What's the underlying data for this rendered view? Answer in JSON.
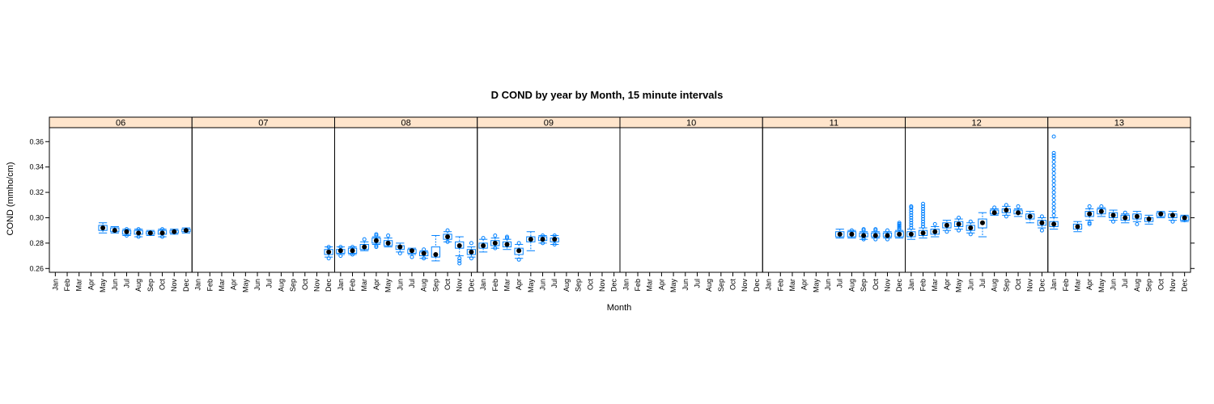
{
  "chart_data": {
    "type": "box",
    "title": "D COND by year by Month, 15 minute intervals",
    "xlabel": "Month",
    "ylabel": "COND (mmho/cm)",
    "ylim": [
      0.257,
      0.371
    ],
    "yticks": [
      "0.26",
      "0.28",
      "0.30",
      "0.32",
      "0.34",
      "0.36"
    ],
    "months": [
      "Jan",
      "Feb",
      "Mar",
      "Apr",
      "May",
      "Jun",
      "Jul",
      "Aug",
      "Sep",
      "Oct",
      "Nov",
      "Dec"
    ],
    "colors": {
      "strip": "#ffe5cc",
      "box": "#0080ff",
      "median": "#000000"
    },
    "panels": [
      {
        "name": "06",
        "boxes": [
          {
            "m": "May",
            "q1": 0.29,
            "med": 0.292,
            "q3": 0.294,
            "lo": 0.288,
            "hi": 0.296,
            "out": []
          },
          {
            "m": "Jun",
            "q1": 0.289,
            "med": 0.29,
            "q3": 0.292,
            "lo": 0.288,
            "hi": 0.293,
            "out": []
          },
          {
            "m": "Jul",
            "q1": 0.287,
            "med": 0.289,
            "q3": 0.29,
            "lo": 0.286,
            "hi": 0.291,
            "out": [
              0.286,
              0.291
            ]
          },
          {
            "m": "Aug",
            "q1": 0.287,
            "med": 0.288,
            "q3": 0.29,
            "lo": 0.285,
            "hi": 0.291,
            "out": [
              0.285,
              0.291
            ]
          },
          {
            "m": "Sep",
            "q1": 0.287,
            "med": 0.288,
            "q3": 0.289,
            "lo": 0.286,
            "hi": 0.29,
            "out": []
          },
          {
            "m": "Oct",
            "q1": 0.287,
            "med": 0.288,
            "q3": 0.29,
            "lo": 0.285,
            "hi": 0.291,
            "out": [
              0.285,
              0.291
            ]
          },
          {
            "m": "Nov",
            "q1": 0.288,
            "med": 0.289,
            "q3": 0.29,
            "lo": 0.287,
            "hi": 0.291,
            "out": []
          },
          {
            "m": "Dec",
            "q1": 0.289,
            "med": 0.29,
            "q3": 0.291,
            "lo": 0.288,
            "hi": 0.292,
            "out": []
          }
        ]
      },
      {
        "name": "07",
        "boxes": [
          {
            "m": "Dec",
            "q1": 0.271,
            "med": 0.273,
            "q3": 0.275,
            "lo": 0.269,
            "hi": 0.277,
            "out": [
              0.268,
              0.277
            ]
          }
        ]
      },
      {
        "name": "08",
        "boxes": [
          {
            "m": "Jan",
            "q1": 0.272,
            "med": 0.274,
            "q3": 0.275,
            "lo": 0.271,
            "hi": 0.277,
            "out": [
              0.27,
              0.277
            ]
          },
          {
            "m": "Feb",
            "q1": 0.272,
            "med": 0.274,
            "q3": 0.276,
            "lo": 0.271,
            "hi": 0.277,
            "out": [
              0.271,
              0.277
            ]
          },
          {
            "m": "Mar",
            "q1": 0.275,
            "med": 0.277,
            "q3": 0.279,
            "lo": 0.274,
            "hi": 0.281,
            "out": [
              0.283
            ]
          },
          {
            "m": "Apr",
            "q1": 0.28,
            "med": 0.282,
            "q3": 0.284,
            "lo": 0.279,
            "hi": 0.285,
            "out": [
              0.277,
              0.278,
              0.286,
              0.287
            ]
          },
          {
            "m": "May",
            "q1": 0.278,
            "med": 0.28,
            "q3": 0.282,
            "lo": 0.277,
            "hi": 0.284,
            "out": [
              0.286
            ]
          },
          {
            "m": "Jun",
            "q1": 0.275,
            "med": 0.277,
            "q3": 0.278,
            "lo": 0.273,
            "hi": 0.28,
            "out": [
              0.272
            ]
          },
          {
            "m": "Jul",
            "q1": 0.272,
            "med": 0.274,
            "q3": 0.275,
            "lo": 0.271,
            "hi": 0.276,
            "out": [
              0.269
            ]
          },
          {
            "m": "Aug",
            "q1": 0.27,
            "med": 0.272,
            "q3": 0.273,
            "lo": 0.268,
            "hi": 0.274,
            "out": [
              0.268,
              0.275
            ]
          },
          {
            "m": "Sep",
            "q1": 0.269,
            "med": 0.271,
            "q3": 0.277,
            "lo": 0.266,
            "hi": 0.286,
            "out": []
          },
          {
            "m": "Oct",
            "q1": 0.283,
            "med": 0.285,
            "q3": 0.287,
            "lo": 0.281,
            "hi": 0.289,
            "out": [
              0.281,
              0.29
            ]
          },
          {
            "m": "Nov",
            "q1": 0.276,
            "med": 0.278,
            "q3": 0.281,
            "lo": 0.27,
            "hi": 0.285,
            "out": [
              0.264,
              0.266,
              0.268
            ]
          },
          {
            "m": "Dec",
            "q1": 0.271,
            "med": 0.273,
            "q3": 0.275,
            "lo": 0.269,
            "hi": 0.277,
            "out": [
              0.268,
              0.28
            ]
          }
        ]
      },
      {
        "name": "09",
        "boxes": [
          {
            "m": "Jan",
            "q1": 0.276,
            "med": 0.278,
            "q3": 0.28,
            "lo": 0.273,
            "hi": 0.283,
            "out": [
              0.284
            ]
          },
          {
            "m": "Feb",
            "q1": 0.278,
            "med": 0.28,
            "q3": 0.282,
            "lo": 0.276,
            "hi": 0.284,
            "out": [
              0.276,
              0.286
            ]
          },
          {
            "m": "Mar",
            "q1": 0.277,
            "med": 0.279,
            "q3": 0.281,
            "lo": 0.275,
            "hi": 0.283,
            "out": [
              0.284,
              0.285
            ]
          },
          {
            "m": "Apr",
            "q1": 0.271,
            "med": 0.274,
            "q3": 0.276,
            "lo": 0.268,
            "hi": 0.279,
            "out": [
              0.267,
              0.28
            ]
          },
          {
            "m": "May",
            "q1": 0.281,
            "med": 0.283,
            "q3": 0.285,
            "lo": 0.274,
            "hi": 0.289,
            "out": []
          },
          {
            "m": "Jun",
            "q1": 0.282,
            "med": 0.283,
            "q3": 0.285,
            "lo": 0.28,
            "hi": 0.286,
            "out": [
              0.28,
              0.286
            ]
          },
          {
            "m": "Jul",
            "q1": 0.281,
            "med": 0.283,
            "q3": 0.284,
            "lo": 0.279,
            "hi": 0.286,
            "out": [
              0.279,
              0.286
            ]
          }
        ]
      },
      {
        "name": "10",
        "boxes": []
      },
      {
        "name": "11",
        "boxes": [
          {
            "m": "Jul",
            "q1": 0.285,
            "med": 0.287,
            "q3": 0.289,
            "lo": 0.284,
            "hi": 0.291,
            "out": []
          },
          {
            "m": "Aug",
            "q1": 0.285,
            "med": 0.287,
            "q3": 0.289,
            "lo": 0.284,
            "hi": 0.29,
            "out": [
              0.29
            ]
          },
          {
            "m": "Sep",
            "q1": 0.285,
            "med": 0.286,
            "q3": 0.288,
            "lo": 0.283,
            "hi": 0.289,
            "out": [
              0.283,
              0.284,
              0.29,
              0.291
            ]
          },
          {
            "m": "Oct",
            "q1": 0.285,
            "med": 0.286,
            "q3": 0.288,
            "lo": 0.284,
            "hi": 0.289,
            "out": [
              0.283,
              0.29,
              0.291
            ]
          },
          {
            "m": "Nov",
            "q1": 0.285,
            "med": 0.286,
            "q3": 0.288,
            "lo": 0.284,
            "hi": 0.289,
            "out": [
              0.283,
              0.29
            ]
          },
          {
            "m": "Dec",
            "q1": 0.285,
            "med": 0.287,
            "q3": 0.289,
            "lo": 0.284,
            "hi": 0.29,
            "out": [
              0.291,
              0.292,
              0.293,
              0.294,
              0.295,
              0.296
            ]
          }
        ]
      },
      {
        "name": "12",
        "boxes": [
          {
            "m": "Jan",
            "q1": 0.285,
            "med": 0.287,
            "q3": 0.289,
            "lo": 0.283,
            "hi": 0.291,
            "out": [
              0.292,
              0.294,
              0.296,
              0.298,
              0.3,
              0.302,
              0.304,
              0.306,
              0.308,
              0.309
            ]
          },
          {
            "m": "Feb",
            "q1": 0.286,
            "med": 0.288,
            "q3": 0.29,
            "lo": 0.284,
            "hi": 0.292,
            "out": [
              0.293,
              0.295,
              0.297,
              0.299,
              0.301,
              0.303,
              0.305,
              0.307,
              0.309,
              0.311
            ]
          },
          {
            "m": "Mar",
            "q1": 0.287,
            "med": 0.289,
            "q3": 0.291,
            "lo": 0.285,
            "hi": 0.293,
            "out": [
              0.295
            ]
          },
          {
            "m": "Apr",
            "q1": 0.292,
            "med": 0.294,
            "q3": 0.296,
            "lo": 0.29,
            "hi": 0.298,
            "out": [
              0.289
            ]
          },
          {
            "m": "May",
            "q1": 0.293,
            "med": 0.295,
            "q3": 0.297,
            "lo": 0.291,
            "hi": 0.299,
            "out": [
              0.29,
              0.3
            ]
          },
          {
            "m": "Jun",
            "q1": 0.29,
            "med": 0.292,
            "q3": 0.294,
            "lo": 0.288,
            "hi": 0.296,
            "out": [
              0.287,
              0.297
            ]
          },
          {
            "m": "Jul",
            "q1": 0.292,
            "med": 0.296,
            "q3": 0.299,
            "lo": 0.285,
            "hi": 0.304,
            "out": []
          },
          {
            "m": "Aug",
            "q1": 0.303,
            "med": 0.304,
            "q3": 0.306,
            "lo": 0.302,
            "hi": 0.307,
            "out": [
              0.308
            ]
          },
          {
            "m": "Sep",
            "q1": 0.304,
            "med": 0.306,
            "q3": 0.307,
            "lo": 0.302,
            "hi": 0.309,
            "out": [
              0.301,
              0.31
            ]
          },
          {
            "m": "Oct",
            "q1": 0.303,
            "med": 0.304,
            "q3": 0.306,
            "lo": 0.301,
            "hi": 0.307,
            "out": [
              0.309
            ]
          },
          {
            "m": "Nov",
            "q1": 0.299,
            "med": 0.301,
            "q3": 0.303,
            "lo": 0.296,
            "hi": 0.305,
            "out": []
          },
          {
            "m": "Dec",
            "q1": 0.294,
            "med": 0.296,
            "q3": 0.298,
            "lo": 0.292,
            "hi": 0.3,
            "out": [
              0.29,
              0.301
            ]
          }
        ]
      },
      {
        "name": "13",
        "boxes": [
          {
            "m": "Jan",
            "q1": 0.293,
            "med": 0.295,
            "q3": 0.297,
            "lo": 0.291,
            "hi": 0.3,
            "out": [
              0.302,
              0.305,
              0.308,
              0.311,
              0.314,
              0.317,
              0.32,
              0.323,
              0.326,
              0.329,
              0.332,
              0.335,
              0.338,
              0.341,
              0.344,
              0.347,
              0.349,
              0.351,
              0.364
            ]
          },
          {
            "m": "Mar",
            "q1": 0.291,
            "med": 0.293,
            "q3": 0.295,
            "lo": 0.289,
            "hi": 0.297,
            "out": []
          },
          {
            "m": "Apr",
            "q1": 0.301,
            "med": 0.303,
            "q3": 0.305,
            "lo": 0.298,
            "hi": 0.307,
            "out": [
              0.295,
              0.296,
              0.309
            ]
          },
          {
            "m": "May",
            "q1": 0.303,
            "med": 0.305,
            "q3": 0.307,
            "lo": 0.301,
            "hi": 0.308,
            "out": [
              0.309
            ]
          },
          {
            "m": "Jun",
            "q1": 0.3,
            "med": 0.302,
            "q3": 0.304,
            "lo": 0.298,
            "hi": 0.306,
            "out": [
              0.297
            ]
          },
          {
            "m": "Jul",
            "q1": 0.298,
            "med": 0.3,
            "q3": 0.302,
            "lo": 0.296,
            "hi": 0.303,
            "out": [
              0.304
            ]
          },
          {
            "m": "Aug",
            "q1": 0.299,
            "med": 0.301,
            "q3": 0.303,
            "lo": 0.297,
            "hi": 0.305,
            "out": [
              0.295
            ]
          },
          {
            "m": "Sep",
            "q1": 0.297,
            "med": 0.299,
            "q3": 0.3,
            "lo": 0.295,
            "hi": 0.302,
            "out": []
          },
          {
            "m": "Oct",
            "q1": 0.301,
            "med": 0.303,
            "q3": 0.304,
            "lo": 0.3,
            "hi": 0.305,
            "out": []
          },
          {
            "m": "Nov",
            "q1": 0.3,
            "med": 0.302,
            "q3": 0.303,
            "lo": 0.298,
            "hi": 0.305,
            "out": [
              0.297
            ]
          },
          {
            "m": "Dec",
            "q1": 0.298,
            "med": 0.3,
            "q3": 0.301,
            "lo": 0.297,
            "hi": 0.302,
            "out": [
              0.298
            ]
          }
        ]
      }
    ]
  }
}
